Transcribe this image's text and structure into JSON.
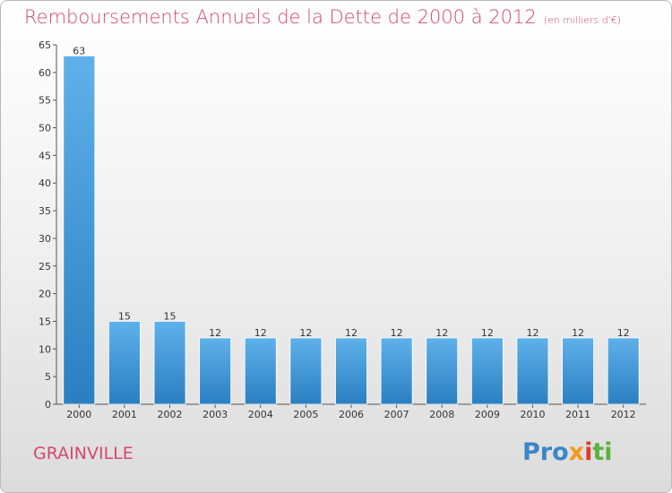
{
  "chart_data": {
    "type": "bar",
    "title": "Remboursements Annuels de la Dette de 2000 à 2012",
    "subtitle": "(en milliers d'€)",
    "categories": [
      "2000",
      "2001",
      "2002",
      "2003",
      "2004",
      "2005",
      "2006",
      "2007",
      "2008",
      "2009",
      "2010",
      "2011",
      "2012"
    ],
    "values": [
      63,
      15,
      15,
      12,
      12,
      12,
      12,
      12,
      12,
      12,
      12,
      12,
      12
    ],
    "ylim": [
      0,
      65
    ],
    "yticks": [
      0,
      5,
      10,
      15,
      20,
      25,
      30,
      35,
      40,
      45,
      50,
      55,
      60,
      65
    ],
    "grid": false,
    "colors": {
      "bar_top": "#5fb1ea",
      "bar_bottom": "#2a7fc1",
      "title": "#d24a6c"
    }
  },
  "footer": {
    "commune": "GRAINVILLE",
    "logo": {
      "p1": "Pro",
      "p2": "x",
      "p3": "i",
      "p4": "ti"
    }
  }
}
